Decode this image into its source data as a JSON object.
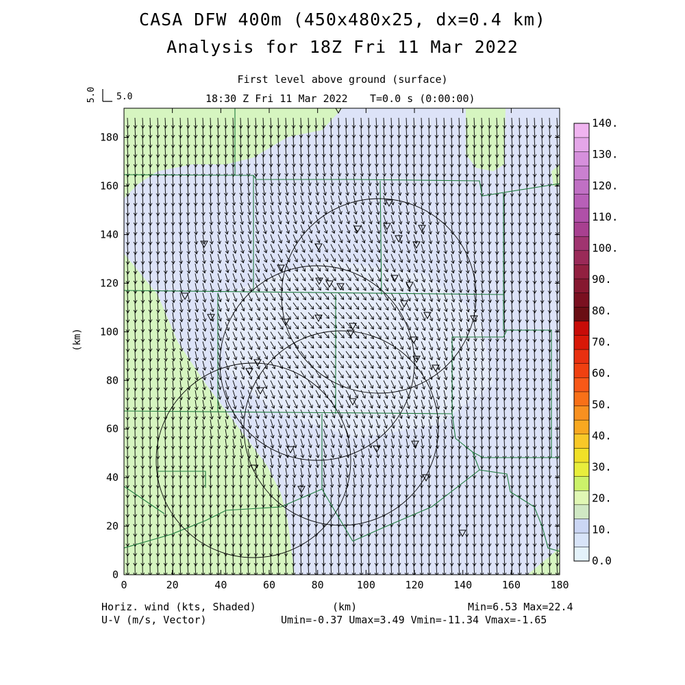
{
  "title": {
    "line1": "CASA DFW 400m (450x480x25, dx=0.4 km)",
    "line2": "Analysis for 18Z Fri 11 Mar 2022"
  },
  "subtitle": {
    "level": "First level above ground (surface)",
    "time": "18:30 Z Fri 11 Mar 2022",
    "t": "T=0.0 s (0:00:00)"
  },
  "reference_vector": {
    "rotated_label": "5.0",
    "label": "5.0"
  },
  "axes": {
    "xlabel": "(km)",
    "ylabel": "(km)",
    "xticks": [
      "0",
      "20",
      "40",
      "60",
      "80",
      "100",
      "120",
      "140",
      "160",
      "180"
    ],
    "yticks": [
      "0",
      "20",
      "40",
      "60",
      "80",
      "100",
      "120",
      "140",
      "160",
      "180"
    ],
    "xlim": [
      0,
      180
    ],
    "ylim": [
      0,
      192
    ]
  },
  "colorbar": {
    "labels": [
      "0.0",
      "10.",
      "20.",
      "30.",
      "40.",
      "50.",
      "60.",
      "70.",
      "80.",
      "90.",
      "100.",
      "110.",
      "120.",
      "130.",
      "140."
    ],
    "colors": [
      "#e4f2fa",
      "#d8e4f8",
      "#cbd6f4",
      "#d0e8c4",
      "#e0f7b4",
      "#ccf26a",
      "#e8ee3c",
      "#f0e028",
      "#f8c828",
      "#f8a820",
      "#f89020",
      "#f87018",
      "#f85818",
      "#f04010",
      "#e83010",
      "#d81808",
      "#c80c08",
      "#6a0e14",
      "#7a1020",
      "#861830",
      "#922040",
      "#9a2a58",
      "#a03470",
      "#a84090",
      "#b050a8",
      "#b860b8",
      "#c070c4",
      "#ca80d0",
      "#d690dc",
      "#e4a6e8",
      "#f0b4f0"
    ]
  },
  "footer": {
    "left1": "Horiz. wind (kts, Shaded)",
    "left2": "U-V (m/s, Vector)",
    "right1": "Min=6.53 Max=22.4",
    "right2": "Umin=-0.37 Umax=3.49 Vmin=-11.34 Vmax=-1.65"
  },
  "map": {
    "fill_regions": [
      {
        "name": "green-band-nw",
        "color": "#d6f5c0"
      },
      {
        "name": "green-band-sw",
        "color": "#d6f5c0"
      },
      {
        "name": "green-ne",
        "color": "#d6f5c0"
      },
      {
        "name": "light-blue-base",
        "color": "#dde3f8"
      },
      {
        "name": "lighter-center",
        "color": "#e6ecfa"
      }
    ],
    "radar_rings": [
      "ring-1",
      "ring-2",
      "ring-3",
      "ring-4"
    ],
    "county_line_color": "#1e7a3c"
  }
}
